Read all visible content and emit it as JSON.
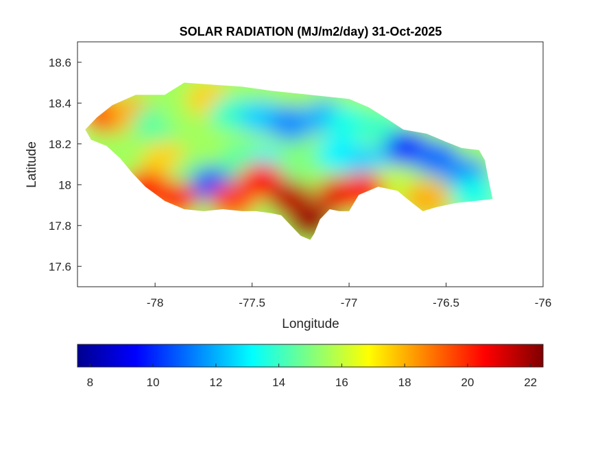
{
  "figure": {
    "title": "SOLAR RADIATION (MJ/m2/day) 31-Oct-2025",
    "xlabel": "Longitude",
    "ylabel": "Latitude"
  },
  "map": {
    "xlim": [
      -78.4,
      -76.0
    ],
    "ylim": [
      17.5,
      18.7
    ],
    "xticks": [
      "-78",
      "-77.5",
      "-77",
      "-76.5",
      "-76"
    ],
    "xtick_values": [
      -78,
      -77.5,
      -77,
      -76.5,
      -76
    ],
    "yticks": [
      "18.6",
      "18.4",
      "18.2",
      "18",
      "17.8",
      "17.6"
    ],
    "ytick_values": [
      18.6,
      18.4,
      18.2,
      18.0,
      17.8,
      17.6
    ],
    "outline": [
      [
        -78.36,
        18.27
      ],
      [
        -78.3,
        18.33
      ],
      [
        -78.22,
        18.39
      ],
      [
        -78.1,
        18.44
      ],
      [
        -77.95,
        18.44
      ],
      [
        -77.85,
        18.5
      ],
      [
        -77.7,
        18.49
      ],
      [
        -77.55,
        18.48
      ],
      [
        -77.4,
        18.46
      ],
      [
        -77.2,
        18.44
      ],
      [
        -77.0,
        18.42
      ],
      [
        -76.9,
        18.38
      ],
      [
        -76.8,
        18.32
      ],
      [
        -76.72,
        18.27
      ],
      [
        -76.6,
        18.25
      ],
      [
        -76.5,
        18.21
      ],
      [
        -76.42,
        18.18
      ],
      [
        -76.33,
        18.17
      ],
      [
        -76.3,
        18.12
      ],
      [
        -76.28,
        18.02
      ],
      [
        -76.26,
        17.93
      ],
      [
        -76.35,
        17.92
      ],
      [
        -76.45,
        17.91
      ],
      [
        -76.55,
        17.89
      ],
      [
        -76.62,
        17.87
      ],
      [
        -76.7,
        17.93
      ],
      [
        -76.75,
        17.97
      ],
      [
        -76.85,
        17.99
      ],
      [
        -76.95,
        17.95
      ],
      [
        -77.0,
        17.87
      ],
      [
        -77.05,
        17.87
      ],
      [
        -77.1,
        17.88
      ],
      [
        -77.15,
        17.83
      ],
      [
        -77.18,
        17.76
      ],
      [
        -77.2,
        17.73
      ],
      [
        -77.25,
        17.75
      ],
      [
        -77.3,
        17.8
      ],
      [
        -77.35,
        17.85
      ],
      [
        -77.4,
        17.86
      ],
      [
        -77.48,
        17.87
      ],
      [
        -77.55,
        17.87
      ],
      [
        -77.65,
        17.88
      ],
      [
        -77.75,
        17.87
      ],
      [
        -77.85,
        17.88
      ],
      [
        -77.95,
        17.92
      ],
      [
        -78.05,
        17.99
      ],
      [
        -78.12,
        18.06
      ],
      [
        -78.18,
        18.13
      ],
      [
        -78.25,
        18.19
      ],
      [
        -78.33,
        18.22
      ]
    ],
    "heat_cells": [
      {
        "lon": -78.25,
        "lat": 18.34,
        "value": 19.5
      },
      {
        "lon": -78.12,
        "lat": 18.35,
        "value": 18.0
      },
      {
        "lon": -78.0,
        "lat": 18.3,
        "value": 14.5
      },
      {
        "lon": -77.85,
        "lat": 18.36,
        "value": 15.5
      },
      {
        "lon": -77.72,
        "lat": 18.42,
        "value": 17.5
      },
      {
        "lon": -77.6,
        "lat": 18.35,
        "value": 14.0
      },
      {
        "lon": -77.45,
        "lat": 18.33,
        "value": 12.5
      },
      {
        "lon": -77.3,
        "lat": 18.3,
        "value": 11.5
      },
      {
        "lon": -77.12,
        "lat": 18.33,
        "value": 12.0
      },
      {
        "lon": -77.0,
        "lat": 18.3,
        "value": 13.5
      },
      {
        "lon": -76.85,
        "lat": 18.28,
        "value": 14.0
      },
      {
        "lon": -76.7,
        "lat": 18.18,
        "value": 10.0
      },
      {
        "lon": -76.55,
        "lat": 18.13,
        "value": 11.0
      },
      {
        "lon": -76.4,
        "lat": 18.05,
        "value": 11.5
      },
      {
        "lon": -76.35,
        "lat": 17.95,
        "value": 13.5
      },
      {
        "lon": -77.95,
        "lat": 18.12,
        "value": 17.5
      },
      {
        "lon": -77.8,
        "lat": 18.05,
        "value": 15.0
      },
      {
        "lon": -77.7,
        "lat": 18.0,
        "value": 10.5
      },
      {
        "lon": -77.55,
        "lat": 18.12,
        "value": 14.5
      },
      {
        "lon": -77.4,
        "lat": 18.1,
        "value": 13.0
      },
      {
        "lon": -77.25,
        "lat": 18.13,
        "value": 15.0
      },
      {
        "lon": -77.05,
        "lat": 18.15,
        "value": 13.0
      },
      {
        "lon": -76.9,
        "lat": 18.1,
        "value": 12.5
      },
      {
        "lon": -76.8,
        "lat": 18.0,
        "value": 16.0
      },
      {
        "lon": -76.6,
        "lat": 17.93,
        "value": 18.0
      },
      {
        "lon": -78.05,
        "lat": 17.98,
        "value": 20.5
      },
      {
        "lon": -77.9,
        "lat": 17.93,
        "value": 20.0
      },
      {
        "lon": -77.6,
        "lat": 17.92,
        "value": 19.5
      },
      {
        "lon": -77.45,
        "lat": 18.02,
        "value": 20.5
      },
      {
        "lon": -77.3,
        "lat": 17.93,
        "value": 21.5
      },
      {
        "lon": -77.2,
        "lat": 17.82,
        "value": 22.0
      },
      {
        "lon": -77.05,
        "lat": 17.95,
        "value": 21.0
      },
      {
        "lon": -76.93,
        "lat": 17.97,
        "value": 20.5
      }
    ]
  },
  "colorbar": {
    "min": 7.6,
    "max": 22.4,
    "ticks": [
      "8",
      "10",
      "12",
      "14",
      "16",
      "18",
      "20",
      "22"
    ],
    "tick_values": [
      8,
      10,
      12,
      14,
      16,
      18,
      20,
      22
    ],
    "colormap": [
      "#00008f",
      "#0000ff",
      "#00ffff",
      "#ffff00",
      "#ff0000",
      "#800000"
    ]
  }
}
